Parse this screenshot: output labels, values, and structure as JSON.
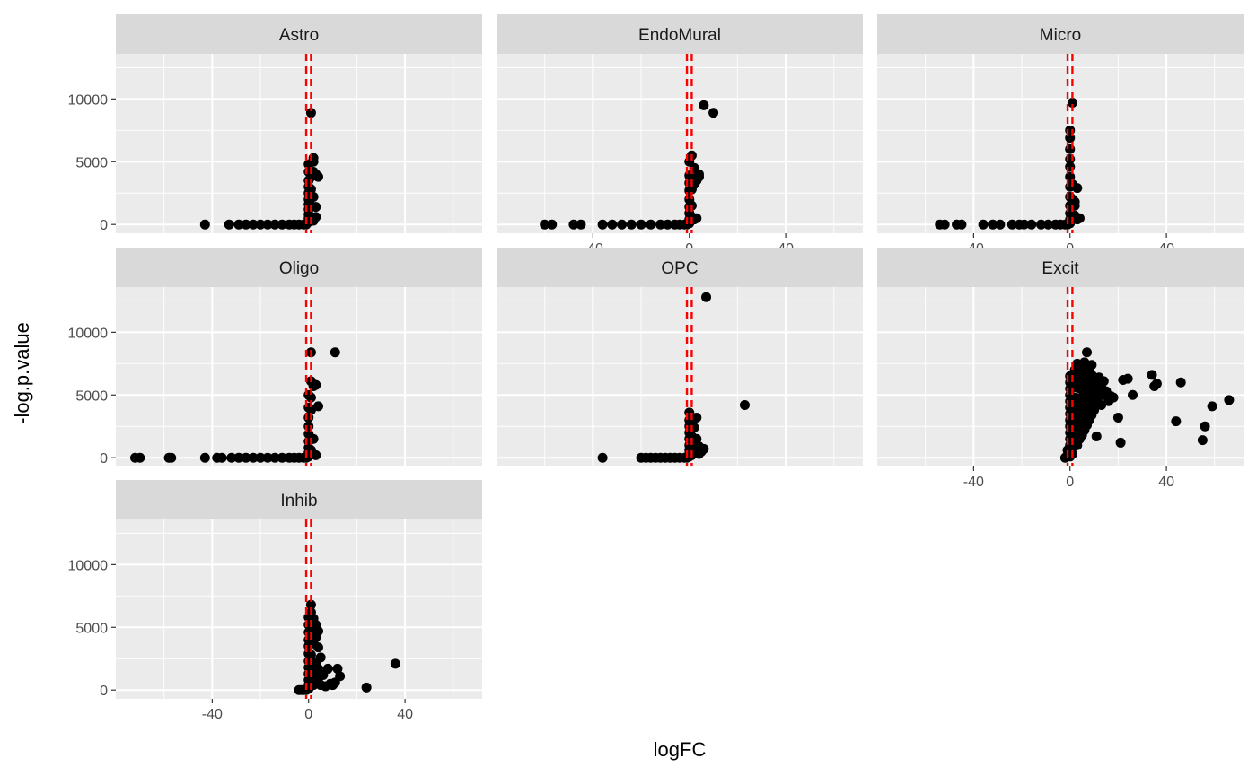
{
  "chart_data": {
    "type": "scatter",
    "title": "",
    "xlabel": "logFC",
    "ylabel": "-log.p.value",
    "xlim": [
      -80,
      72
    ],
    "ylim": [
      -700,
      13600
    ],
    "x_ticks": [
      -40,
      0,
      40
    ],
    "x_tick_labels": [
      "-40",
      "0",
      "40"
    ],
    "y_ticks": [
      0,
      5000,
      10000
    ],
    "y_tick_labels": [
      "0",
      "5000",
      "10000"
    ],
    "grid": true,
    "reference_lines": [
      {
        "axis": "x",
        "value": -1,
        "style": "dashed",
        "color": "#ff0000"
      },
      {
        "axis": "x",
        "value": 1,
        "style": "dashed",
        "color": "#ff0000"
      }
    ],
    "point_color": "#000000",
    "panel_background": "#ebebeb",
    "strip_background": "#d9d9d9",
    "facets": [
      {
        "name": "Astro",
        "x": [
          -43,
          -33,
          -29,
          -26,
          -23,
          -20,
          -17,
          -14,
          -11,
          -8,
          -6,
          -4,
          -2,
          -1,
          0,
          0,
          0,
          0,
          0,
          0,
          0,
          0,
          0,
          0,
          0,
          1,
          1,
          1,
          1,
          1,
          2,
          2,
          2,
          2,
          2,
          3,
          3,
          3,
          4
        ],
        "y": [
          0,
          0,
          0,
          0,
          0,
          0,
          0,
          0,
          0,
          0,
          0,
          0,
          0,
          0,
          200,
          500,
          800,
          1200,
          1600,
          2000,
          2500,
          3000,
          3500,
          4200,
          4800,
          500,
          1500,
          2800,
          3800,
          8900,
          300,
          2200,
          4200,
          5000,
          5300,
          600,
          1400,
          4000,
          3800
        ]
      },
      {
        "name": "EndoMural",
        "x": [
          -60,
          -57,
          -48,
          -45,
          -36,
          -32,
          -28,
          -24,
          -20,
          -16,
          -12,
          -9,
          -6,
          -4,
          -2,
          -1,
          0,
          0,
          0,
          0,
          0,
          0,
          0,
          0,
          0,
          1,
          1,
          1,
          1,
          2,
          2,
          2,
          3,
          3,
          4,
          4,
          6,
          10
        ],
        "y": [
          0,
          0,
          0,
          0,
          0,
          0,
          0,
          0,
          0,
          0,
          0,
          0,
          0,
          0,
          0,
          0,
          100,
          400,
          900,
          1400,
          2000,
          2700,
          3300,
          3900,
          5000,
          600,
          1500,
          2800,
          5500,
          400,
          3200,
          4500,
          3500,
          500,
          3800,
          4000,
          9500,
          8900
        ]
      },
      {
        "name": "Micro",
        "x": [
          -54,
          -52,
          -47,
          -45,
          -36,
          -32,
          -29,
          -24,
          -21,
          -19,
          -16,
          -12,
          -9,
          -6,
          -4,
          -2,
          -1,
          0,
          0,
          0,
          0,
          0,
          0,
          0,
          0,
          0,
          0,
          0,
          0,
          1,
          1,
          1,
          1,
          2,
          2,
          3,
          3,
          4,
          2
        ],
        "y": [
          0,
          0,
          0,
          0,
          0,
          0,
          0,
          0,
          0,
          0,
          0,
          0,
          0,
          0,
          0,
          0,
          0,
          100,
          400,
          900,
          1500,
          2200,
          3000,
          3800,
          4600,
          5200,
          6000,
          6900,
          7500,
          9700,
          600,
          2000,
          3200,
          700,
          1500,
          400,
          2900,
          500,
          1800
        ]
      },
      {
        "name": "Oligo",
        "x": [
          -72,
          -70,
          -58,
          -57,
          -43,
          -38,
          -36,
          -32,
          -29,
          -26,
          -23,
          -20,
          -17,
          -14,
          -11,
          -8,
          -6,
          -4,
          -2,
          -1,
          0,
          0,
          0,
          0,
          0,
          0,
          0,
          0,
          0,
          1,
          1,
          1,
          1,
          1,
          2,
          2,
          3,
          3,
          4,
          11
        ],
        "y": [
          0,
          0,
          0,
          0,
          0,
          0,
          0,
          0,
          0,
          0,
          0,
          0,
          0,
          0,
          0,
          0,
          0,
          0,
          0,
          0,
          100,
          400,
          800,
          1300,
          1900,
          2500,
          3200,
          4000,
          5000,
          6100,
          8400,
          4800,
          3800,
          600,
          5700,
          1500,
          5800,
          200,
          4100,
          8400
        ]
      },
      {
        "name": "OPC",
        "x": [
          -36,
          -20,
          -18,
          -16,
          -14,
          -12,
          -10,
          -8,
          -6,
          -4,
          -2,
          -1,
          0,
          0,
          0,
          0,
          0,
          0,
          0,
          0,
          0,
          1,
          1,
          1,
          1,
          2,
          2,
          2,
          3,
          3,
          3,
          4,
          4,
          5,
          6,
          7,
          23
        ],
        "y": [
          0,
          0,
          0,
          0,
          0,
          0,
          0,
          0,
          0,
          0,
          0,
          0,
          100,
          300,
          600,
          1000,
          1500,
          2000,
          2500,
          3000,
          3600,
          200,
          800,
          1700,
          2700,
          400,
          1300,
          2400,
          600,
          1500,
          3200,
          300,
          900,
          500,
          700,
          12800,
          4200
        ]
      },
      {
        "name": "Excit",
        "x": [
          -2,
          -1,
          -1,
          0,
          0,
          0,
          0,
          0,
          0,
          0,
          0,
          0,
          0,
          0,
          0,
          0,
          0,
          1,
          1,
          1,
          1,
          1,
          1,
          1,
          1,
          1,
          2,
          2,
          2,
          2,
          2,
          2,
          2,
          2,
          3,
          3,
          3,
          3,
          3,
          3,
          3,
          3,
          4,
          4,
          4,
          4,
          4,
          4,
          4,
          5,
          5,
          5,
          5,
          5,
          5,
          5,
          6,
          6,
          6,
          6,
          6,
          6,
          6,
          7,
          7,
          7,
          7,
          7,
          7,
          7,
          8,
          8,
          8,
          8,
          8,
          8,
          9,
          9,
          9,
          9,
          9,
          9,
          10,
          10,
          10,
          10,
          11,
          11,
          11,
          12,
          12,
          12,
          13,
          13,
          14,
          14,
          15,
          16,
          17,
          18,
          20,
          21,
          22,
          24,
          26,
          34,
          35,
          36,
          44,
          46,
          55,
          56,
          59,
          66
        ],
        "y": [
          0,
          200,
          600,
          100,
          500,
          1000,
          1500,
          2000,
          2500,
          3000,
          3500,
          4000,
          4500,
          5000,
          5500,
          6000,
          6500,
          800,
          1600,
          2400,
          3200,
          4000,
          4800,
          5600,
          6200,
          300,
          1200,
          2100,
          3000,
          3900,
          4800,
          5700,
          6300,
          7000,
          1000,
          2000,
          2900,
          3800,
          4700,
          5600,
          6400,
          7500,
          1500,
          2500,
          3500,
          4500,
          5500,
          6300,
          7200,
          1800,
          2800,
          3800,
          4800,
          5800,
          6600,
          7000,
          2200,
          3200,
          4200,
          5200,
          6000,
          6800,
          7600,
          2600,
          3600,
          4600,
          5500,
          6200,
          6600,
          8400,
          3000,
          4000,
          5000,
          5800,
          6400,
          7000,
          3400,
          4400,
          5400,
          6000,
          6600,
          7400,
          3800,
          4800,
          5600,
          6200,
          1700,
          4500,
          5600,
          4900,
          5800,
          6400,
          4200,
          5600,
          5000,
          6100,
          5300,
          4500,
          4900,
          4800,
          3200,
          1200,
          6200,
          6300,
          5000,
          6600,
          5700,
          5900,
          2900,
          6000,
          1400,
          2500,
          4100,
          4600
        ]
      },
      {
        "name": "Inhib",
        "x": [
          -4,
          -3,
          -2,
          -1,
          0,
          0,
          0,
          0,
          0,
          0,
          0,
          0,
          0,
          0,
          0,
          0,
          1,
          1,
          1,
          1,
          1,
          2,
          2,
          2,
          2,
          2,
          3,
          3,
          3,
          3,
          4,
          4,
          4,
          4,
          5,
          5,
          6,
          7,
          8,
          9,
          10,
          11,
          12,
          13,
          24,
          36
        ],
        "y": [
          0,
          0,
          0,
          0,
          100,
          400,
          800,
          1300,
          1800,
          2300,
          2900,
          3500,
          4000,
          4600,
          5200,
          5800,
          6200,
          6800,
          5000,
          2800,
          800,
          3800,
          4500,
          5700,
          1500,
          400,
          2200,
          4200,
          5200,
          1100,
          1700,
          3400,
          4700,
          900,
          2600,
          400,
          1200,
          300,
          1700,
          500,
          400,
          600,
          1700,
          1100,
          200,
          2100
        ]
      }
    ]
  }
}
